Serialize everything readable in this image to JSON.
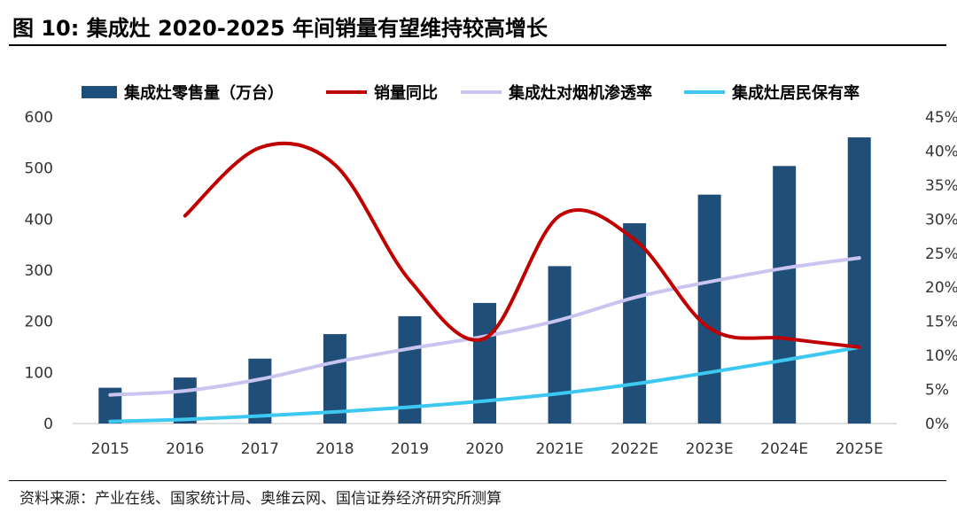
{
  "title": "图 10:  集成灶 2020-2025 年间销量有望维持较高增长",
  "source": "资料来源：产业在线、国家统计局、奥维云网、国信证券经济研究所测算",
  "colors": {
    "bar": "#1F4E79",
    "yoy": "#C00000",
    "penetration": "#C9C5F0",
    "ownership": "#3CC8F0"
  },
  "chart_data": {
    "type": "bar+line",
    "categories": [
      "2015",
      "2016",
      "2017",
      "2018",
      "2019",
      "2020",
      "2021E",
      "2022E",
      "2023E",
      "2024E",
      "2025E"
    ],
    "y_left": {
      "min": 0,
      "max": 600,
      "ticks": [
        "0",
        "100",
        "200",
        "300",
        "400",
        "500",
        "600"
      ]
    },
    "y_right": {
      "min": 0,
      "max": 45,
      "ticks": [
        "0%",
        "5%",
        "10%",
        "15%",
        "20%",
        "25%",
        "30%",
        "35%",
        "40%",
        "45%"
      ]
    },
    "series": [
      {
        "name": "集成灶零售量（万台）",
        "type": "bar",
        "axis": "left",
        "values": [
          70,
          90,
          127,
          175,
          210,
          236,
          308,
          392,
          448,
          504,
          560
        ]
      },
      {
        "name": "销量同比",
        "type": "line",
        "axis": "right",
        "values": [
          null,
          30.5,
          40.5,
          38.0,
          21.0,
          12.5,
          30.5,
          27.0,
          14.0,
          12.5,
          11.2
        ]
      },
      {
        "name": "集成灶对烟机渗透率",
        "type": "line",
        "axis": "right",
        "values": [
          4.2,
          4.8,
          6.5,
          9.0,
          11.0,
          12.8,
          15.2,
          18.5,
          20.8,
          22.8,
          24.3
        ]
      },
      {
        "name": "集成灶居民保有率",
        "type": "line",
        "axis": "right",
        "values": [
          0.3,
          0.6,
          1.1,
          1.7,
          2.4,
          3.3,
          4.4,
          5.8,
          7.5,
          9.3,
          11.2
        ]
      }
    ]
  }
}
